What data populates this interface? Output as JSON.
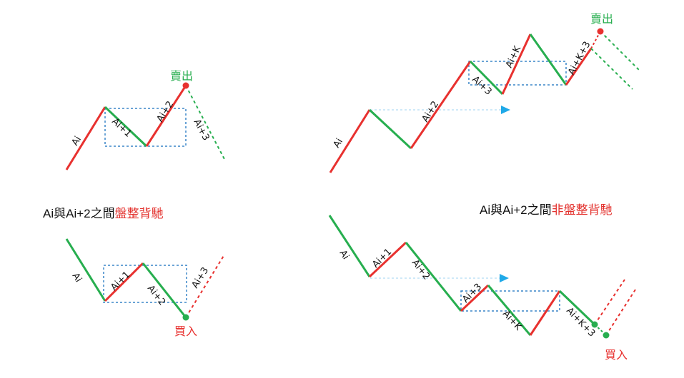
{
  "colors": {
    "up": "#e8312f",
    "down": "#27ae4f",
    "box": "#3a86c8",
    "arrow": "#1fa9e8",
    "text": "#111111"
  },
  "captions": {
    "left_prefix": "Ai與Ai+2之間",
    "left_highlight": "盤整背馳",
    "right_prefix": "Ai與Ai+2之間",
    "right_highlight": "非盤整背馳"
  },
  "labels": {
    "ai": "Ai",
    "ai1": "Ai+1",
    "ai2": "Ai+2",
    "ai3": "Ai+3",
    "aik": "Ai+K",
    "aik3": "Ai+K+3",
    "sell": "賣出",
    "buy": "買入"
  },
  "panels": [
    "top-left-sell-consolidation",
    "top-right-sell-non-consolidation",
    "bottom-left-buy-consolidation",
    "bottom-right-buy-non-consolidation"
  ]
}
